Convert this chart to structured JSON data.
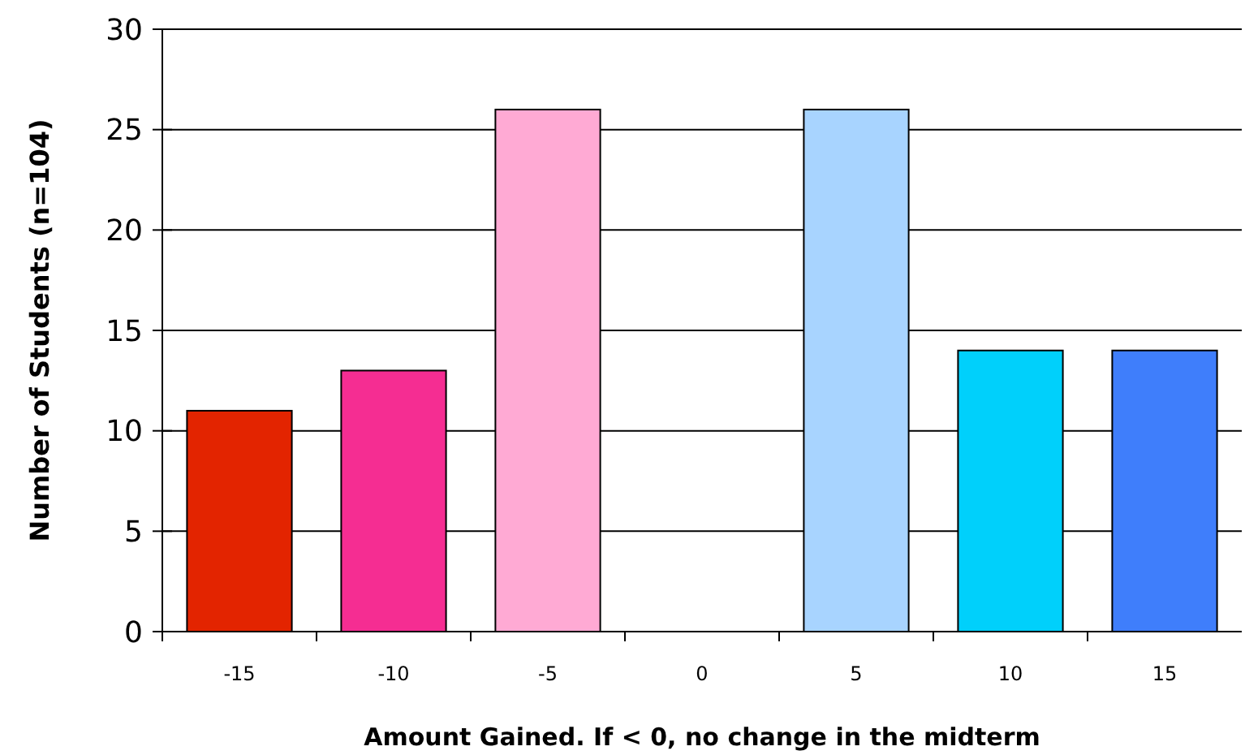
{
  "chart_data": {
    "type": "bar",
    "xlabel": "Amount Gained. If < 0, no change in the midterm",
    "ylabel": "Number of Students (n=104)",
    "categories": [
      "-15",
      "-10",
      "-5",
      "0",
      "5",
      "10",
      "15"
    ],
    "values": [
      11,
      13,
      26,
      0,
      26,
      14,
      14
    ],
    "colors": [
      "#e32400",
      "#f52d92",
      "#ffaad4",
      "#ffffff",
      "#a8d4ff",
      "#00d0fb",
      "#3f7efb"
    ],
    "ylim": [
      0,
      30
    ],
    "yticks": [
      0,
      5,
      10,
      15,
      20,
      25,
      30
    ],
    "grid": "y"
  }
}
